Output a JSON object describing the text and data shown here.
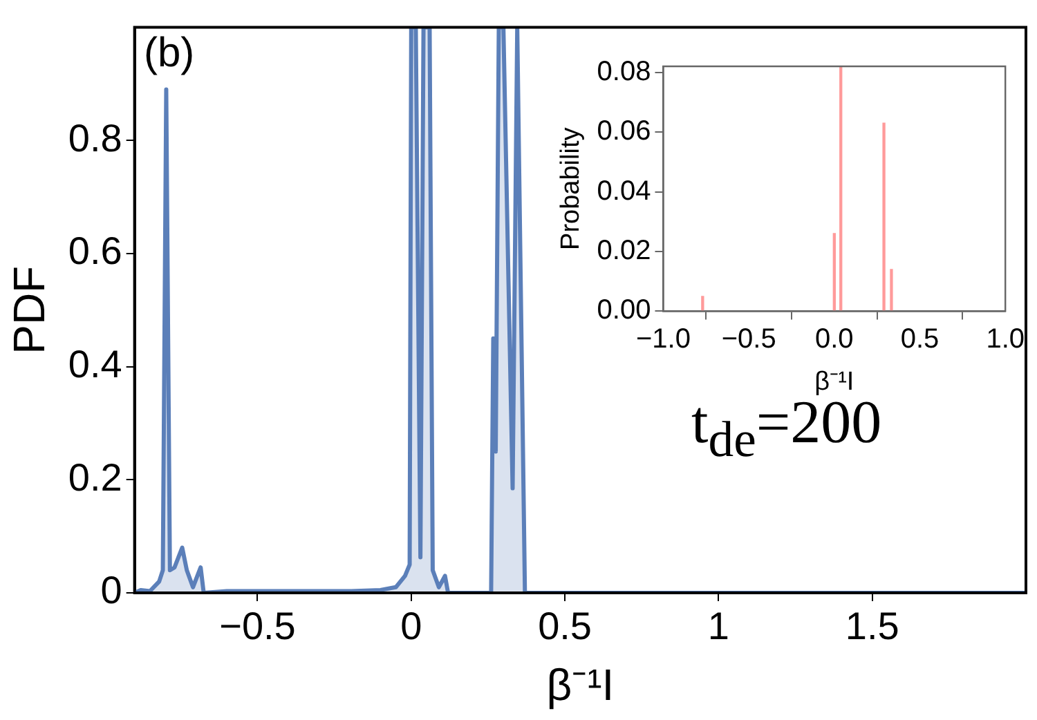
{
  "chart_data": [
    {
      "type": "area",
      "xlabel": "β⁻¹I",
      "ylabel": "PDF",
      "annotations": [
        "(b)",
        "t$_{de}$=200"
      ],
      "series": [
        {
          "color": "#5b7fb9",
          "x": [
            -0.9,
            -0.88,
            -0.85,
            -0.82,
            -0.808,
            -0.797,
            -0.785,
            -0.77,
            -0.745,
            -0.73,
            -0.71,
            -0.685,
            -0.675,
            -0.6,
            -0.4,
            -0.2,
            -0.1,
            -0.05,
            -0.02,
            -0.005,
            0.0,
            0.015,
            0.03,
            0.04,
            0.06,
            0.07,
            0.09,
            0.11,
            0.12,
            0.2,
            0.26,
            0.267,
            0.275,
            0.285,
            0.3,
            0.33,
            0.345,
            0.37,
            0.5,
            1.0,
            2.0
          ],
          "values": [
            0,
            0.005,
            0.003,
            0.02,
            0.04,
            0.89,
            0.04,
            0.045,
            0.08,
            0.04,
            0.01,
            0.045,
            0,
            0.003,
            0.003,
            0.003,
            0.005,
            0.01,
            0.03,
            0.05,
            1,
            1,
            0.063,
            1,
            1,
            0.04,
            0.01,
            0.03,
            0,
            0,
            0,
            0.45,
            0.25,
            1,
            1,
            0.185,
            1,
            0,
            0,
            0,
            0
          ]
        }
      ],
      "xlim": [
        -0.9,
        2.0
      ],
      "ylim": [
        0,
        1.0
      ],
      "xticks": [
        {
          "value": -0.5,
          "label": "−0.5"
        },
        0,
        0.5,
        1,
        1.5
      ],
      "yticks": [
        0,
        0.2,
        0.4,
        0.6,
        0.8
      ],
      "grid": false
    },
    {
      "type": "bar",
      "xlabel": "β⁻¹I",
      "ylabel": "Probability",
      "series": [
        {
          "color": "#ff9a9a",
          "x": [
            -0.77,
            0.0,
            0.038,
            0.29,
            0.334
          ],
          "values": [
            0.005,
            0.026,
            0.082,
            0.063,
            0.014
          ]
        }
      ],
      "xlim": [
        -1,
        1
      ],
      "ylim": [
        0,
        0.082
      ],
      "xticks": [
        {
          "value": -1,
          "label": "−1.0"
        },
        {
          "value": -0.5,
          "label": "−0.5"
        },
        {
          "value": 0,
          "label": "0.0"
        },
        0.5,
        {
          "value": 1,
          "label": "1.0"
        }
      ],
      "yticks": [
        {
          "value": 0,
          "label": "0.00"
        },
        {
          "value": 0.02,
          "label": "0.02"
        },
        {
          "value": 0.04,
          "label": "0.04"
        },
        {
          "value": 0.06,
          "label": "0.06"
        },
        {
          "value": 0.08,
          "label": "0.08"
        }
      ],
      "grid": false
    }
  ]
}
